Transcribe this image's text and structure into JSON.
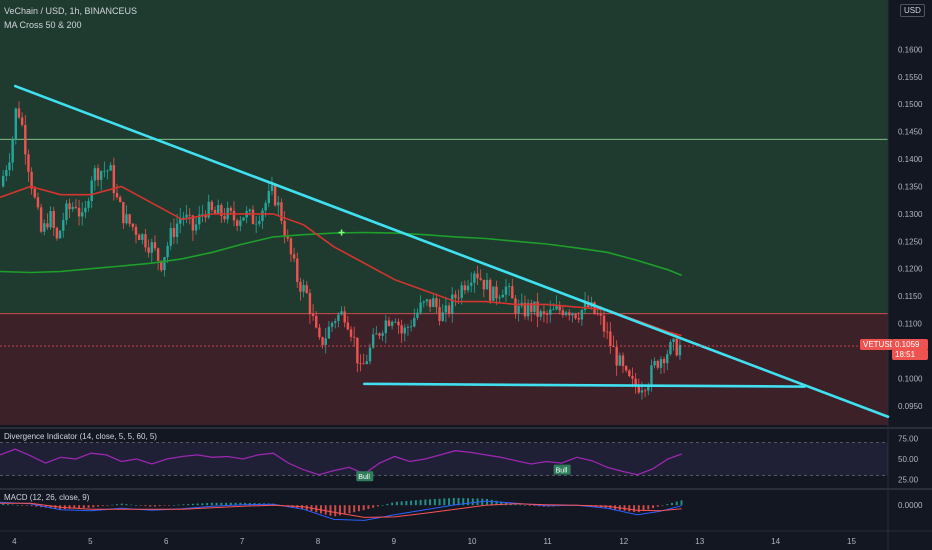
{
  "header": {
    "symbol_line": "VeChain / USD, 1h, BINANCEUS",
    "indicator_line": "MA Cross 50 & 200"
  },
  "currency_badge": "USD",
  "price_tag": {
    "symbol": "VETUSD",
    "price": "0.1059",
    "countdown": "18:51"
  },
  "colors": {
    "background": "#131722",
    "green_zone": "#1f3b2f",
    "red_zone": "#3d2128",
    "up_candle": "#26a69a",
    "down_candle": "#ef5350",
    "trendline": "#40e0f0",
    "ma_fast": "#d6342f",
    "ma_slow": "#1e9e2b",
    "rsi_line": "#9c27b0",
    "macd_line": "#2962ff",
    "signal_line": "#ff5252"
  },
  "chart_data": [
    {
      "type": "candlestick",
      "title": "VeChain / USD, 1h, BINANCEUS",
      "ylim": [
        0.0915,
        0.169
      ],
      "y_ticks": [
        "0.1600",
        "0.1550",
        "0.1500",
        "0.1450",
        "0.1400",
        "0.1350",
        "0.1300",
        "0.1250",
        "0.1200",
        "0.1150",
        "0.1100",
        "0.1000",
        "0.0950"
      ],
      "xlim": [
        3.8,
        15.5
      ],
      "x_ticks": [
        "4",
        "5",
        "6",
        "7",
        "8",
        "9",
        "10",
        "11",
        "12",
        "13",
        "14",
        "15"
      ],
      "price_path": [
        [
          3.8,
          0.135
        ],
        [
          3.95,
          0.142
        ],
        [
          4.02,
          0.15
        ],
        [
          4.08,
          0.147
        ],
        [
          4.15,
          0.141
        ],
        [
          4.25,
          0.133
        ],
        [
          4.35,
          0.126
        ],
        [
          4.45,
          0.13
        ],
        [
          4.55,
          0.125
        ],
        [
          4.65,
          0.13
        ],
        [
          4.8,
          0.132
        ],
        [
          4.9,
          0.128
        ],
        [
          5.0,
          0.137
        ],
        [
          5.1,
          0.138
        ],
        [
          5.25,
          0.138
        ],
        [
          5.35,
          0.132
        ],
        [
          5.45,
          0.129
        ],
        [
          5.6,
          0.127
        ],
        [
          5.8,
          0.124
        ],
        [
          5.92,
          0.121
        ],
        [
          6.05,
          0.126
        ],
        [
          6.2,
          0.13
        ],
        [
          6.35,
          0.127
        ],
        [
          6.5,
          0.131
        ],
        [
          6.6,
          0.13
        ],
        [
          6.75,
          0.13
        ],
        [
          6.9,
          0.129
        ],
        [
          7.0,
          0.13
        ],
        [
          7.15,
          0.129
        ],
        [
          7.3,
          0.132
        ],
        [
          7.4,
          0.134
        ],
        [
          7.5,
          0.13
        ],
        [
          7.6,
          0.124
        ],
        [
          7.72,
          0.118
        ],
        [
          7.85,
          0.115
        ],
        [
          8.0,
          0.106
        ],
        [
          8.1,
          0.108
        ],
        [
          8.2,
          0.111
        ],
        [
          8.35,
          0.112
        ],
        [
          8.45,
          0.108
        ],
        [
          8.55,
          0.101
        ],
        [
          8.7,
          0.106
        ],
        [
          8.85,
          0.11
        ],
        [
          9.0,
          0.112
        ],
        [
          9.1,
          0.108
        ],
        [
          9.2,
          0.11
        ],
        [
          9.35,
          0.113
        ],
        [
          9.5,
          0.114
        ],
        [
          9.65,
          0.111
        ],
        [
          9.8,
          0.115
        ],
        [
          9.95,
          0.118
        ],
        [
          10.05,
          0.12
        ],
        [
          10.15,
          0.118
        ],
        [
          10.3,
          0.115
        ],
        [
          10.45,
          0.117
        ],
        [
          10.55,
          0.114
        ],
        [
          10.65,
          0.112
        ],
        [
          10.8,
          0.113
        ],
        [
          10.95,
          0.111
        ],
        [
          11.1,
          0.112
        ],
        [
          11.25,
          0.113
        ],
        [
          11.4,
          0.112
        ],
        [
          11.55,
          0.113
        ],
        [
          11.7,
          0.111
        ],
        [
          11.85,
          0.106
        ],
        [
          11.95,
          0.103
        ],
        [
          12.05,
          0.1
        ],
        [
          12.15,
          0.0985
        ],
        [
          12.25,
          0.099
        ],
        [
          12.35,
          0.1
        ],
        [
          12.45,
          0.103
        ],
        [
          12.55,
          0.1045
        ],
        [
          12.65,
          0.1055
        ],
        [
          12.78,
          0.1059
        ]
      ],
      "ma_fast": [
        [
          3.8,
          0.133
        ],
        [
          4.2,
          0.135
        ],
        [
          4.6,
          0.1335
        ],
        [
          5.0,
          0.1335
        ],
        [
          5.4,
          0.135
        ],
        [
          5.8,
          0.132
        ],
        [
          6.2,
          0.129
        ],
        [
          6.6,
          0.13
        ],
        [
          7.0,
          0.13
        ],
        [
          7.4,
          0.13
        ],
        [
          7.8,
          0.128
        ],
        [
          8.2,
          0.124
        ],
        [
          8.6,
          0.121
        ],
        [
          9.0,
          0.118
        ],
        [
          9.4,
          0.116
        ],
        [
          9.8,
          0.114
        ],
        [
          10.2,
          0.114
        ],
        [
          10.6,
          0.1135
        ],
        [
          11.0,
          0.1135
        ],
        [
          11.4,
          0.113
        ],
        [
          11.8,
          0.1125
        ],
        [
          12.2,
          0.1105
        ],
        [
          12.6,
          0.1085
        ],
        [
          12.78,
          0.1078
        ]
      ],
      "ma_slow": [
        [
          3.8,
          0.1195
        ],
        [
          4.2,
          0.1193
        ],
        [
          4.6,
          0.1195
        ],
        [
          5.0,
          0.12
        ],
        [
          5.4,
          0.1205
        ],
        [
          5.8,
          0.121
        ],
        [
          6.2,
          0.1218
        ],
        [
          6.6,
          0.123
        ],
        [
          7.0,
          0.1245
        ],
        [
          7.4,
          0.1258
        ],
        [
          7.8,
          0.1262
        ],
        [
          8.2,
          0.1265
        ],
        [
          8.6,
          0.1266
        ],
        [
          9.0,
          0.1265
        ],
        [
          9.4,
          0.1262
        ],
        [
          9.8,
          0.1258
        ],
        [
          10.2,
          0.1255
        ],
        [
          10.6,
          0.125
        ],
        [
          11.0,
          0.1245
        ],
        [
          11.4,
          0.1238
        ],
        [
          11.8,
          0.123
        ],
        [
          12.2,
          0.1215
        ],
        [
          12.6,
          0.1198
        ],
        [
          12.78,
          0.1188
        ]
      ],
      "zones": [
        {
          "name": "green",
          "from": 0.1118,
          "to": 0.169
        },
        {
          "name": "red",
          "from": 0.0915,
          "to": 0.1118
        }
      ],
      "horizontal_line": 0.1436,
      "trendlines": [
        {
          "from": [
            4.0,
            0.1533
          ],
          "to": [
            15.5,
            0.093
          ]
        },
        {
          "from": [
            8.6,
            0.099
          ],
          "to": [
            14.4,
            0.0985
          ]
        }
      ],
      "cross_marker": [
        8.3,
        0.1266
      ],
      "last_price": 0.1059
    },
    {
      "type": "line",
      "title": "Divergence Indicator (14, close, 5, 5, 60, 5)",
      "ylim": [
        15,
        85
      ],
      "y_ticks": [
        "75.00",
        "50.00",
        "25.00"
      ],
      "bands": [
        70,
        30
      ],
      "rsi": [
        [
          3.8,
          55
        ],
        [
          4.0,
          62
        ],
        [
          4.2,
          54
        ],
        [
          4.4,
          45
        ],
        [
          4.6,
          52
        ],
        [
          4.8,
          50
        ],
        [
          5.0,
          57
        ],
        [
          5.2,
          55
        ],
        [
          5.4,
          47
        ],
        [
          5.6,
          50
        ],
        [
          5.8,
          44
        ],
        [
          6.0,
          50
        ],
        [
          6.2,
          53
        ],
        [
          6.4,
          55
        ],
        [
          6.6,
          52
        ],
        [
          6.8,
          53
        ],
        [
          7.0,
          50
        ],
        [
          7.2,
          55
        ],
        [
          7.4,
          57
        ],
        [
          7.6,
          45
        ],
        [
          7.8,
          37
        ],
        [
          8.0,
          31
        ],
        [
          8.2,
          36
        ],
        [
          8.4,
          40
        ],
        [
          8.6,
          32
        ],
        [
          8.8,
          45
        ],
        [
          9.0,
          53
        ],
        [
          9.2,
          47
        ],
        [
          9.4,
          50
        ],
        [
          9.6,
          55
        ],
        [
          9.8,
          60
        ],
        [
          10.0,
          58
        ],
        [
          10.2,
          55
        ],
        [
          10.4,
          52
        ],
        [
          10.6,
          48
        ],
        [
          10.8,
          44
        ],
        [
          11.0,
          47
        ],
        [
          11.2,
          45
        ],
        [
          11.4,
          52
        ],
        [
          11.6,
          48
        ],
        [
          11.8,
          40
        ],
        [
          12.0,
          35
        ],
        [
          12.2,
          31
        ],
        [
          12.4,
          38
        ],
        [
          12.6,
          50
        ],
        [
          12.78,
          56
        ]
      ],
      "labels": [
        {
          "text": "Bull",
          "at": [
            8.6,
            28
          ]
        },
        {
          "text": "Bull",
          "at": [
            11.2,
            36
          ]
        }
      ]
    },
    {
      "type": "bar",
      "title": "MACD (12, 26, close, 9)",
      "ylim": [
        -0.0045,
        0.003
      ],
      "y_ticks": [
        "0.0000"
      ],
      "macd": [
        [
          3.8,
          0.0006
        ],
        [
          4.2,
          0.0003
        ],
        [
          4.6,
          -0.0009
        ],
        [
          5.0,
          -0.0011
        ],
        [
          5.4,
          -0.0006
        ],
        [
          5.8,
          -0.001
        ],
        [
          6.2,
          -0.0007
        ],
        [
          6.6,
          -0.0002
        ],
        [
          7.0,
          0.0001
        ],
        [
          7.4,
          0.0002
        ],
        [
          7.8,
          -0.0008
        ],
        [
          8.2,
          -0.0028
        ],
        [
          8.6,
          -0.003
        ],
        [
          9.0,
          -0.0019
        ],
        [
          9.4,
          -0.0009
        ],
        [
          9.8,
          0.0001
        ],
        [
          10.2,
          0.0008
        ],
        [
          10.6,
          0.0004
        ],
        [
          11.0,
          -0.0001
        ],
        [
          11.4,
          0.0
        ],
        [
          11.8,
          -0.0006
        ],
        [
          12.2,
          -0.0019
        ],
        [
          12.5,
          -0.0012
        ],
        [
          12.78,
          -0.0001
        ]
      ],
      "signal": [
        [
          3.8,
          0.0004
        ],
        [
          4.2,
          0.0004
        ],
        [
          4.6,
          -0.0004
        ],
        [
          5.0,
          -0.0008
        ],
        [
          5.4,
          -0.0008
        ],
        [
          5.8,
          -0.0008
        ],
        [
          6.2,
          -0.0008
        ],
        [
          6.6,
          -0.0005
        ],
        [
          7.0,
          -0.0002
        ],
        [
          7.4,
          0.0
        ],
        [
          7.8,
          -0.0003
        ],
        [
          8.2,
          -0.0014
        ],
        [
          8.6,
          -0.0024
        ],
        [
          9.0,
          -0.0023
        ],
        [
          9.4,
          -0.0016
        ],
        [
          9.8,
          -0.0008
        ],
        [
          10.2,
          0.0
        ],
        [
          10.6,
          0.0003
        ],
        [
          11.0,
          0.0001
        ],
        [
          11.4,
          0.0
        ],
        [
          11.8,
          -0.0002
        ],
        [
          12.2,
          -0.001
        ],
        [
          12.5,
          -0.0011
        ],
        [
          12.78,
          -0.0007
        ]
      ]
    }
  ]
}
